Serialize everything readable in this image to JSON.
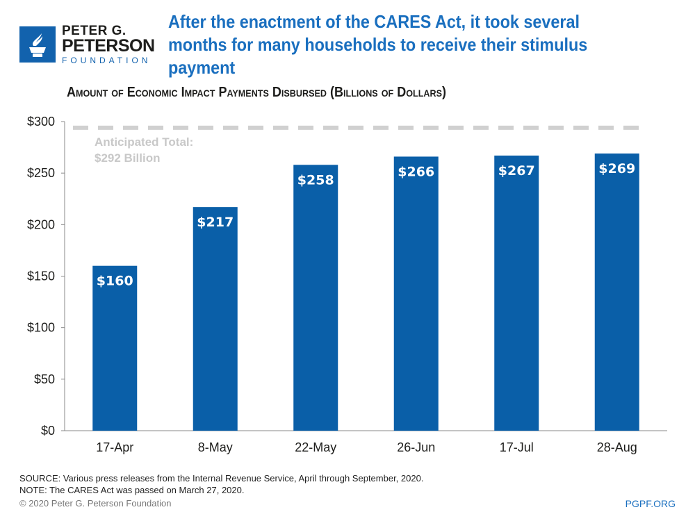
{
  "logo": {
    "line1": "PETER G.",
    "line2": "PETERSON",
    "line3": "FOUNDATION"
  },
  "title": "After the enactment of the CARES Act, it took several months for many households to receive their stimulus payment",
  "colors": {
    "bar": "#0a5fa8",
    "title": "#1a6fbf",
    "reference_line": "#d0d0d0"
  },
  "chart_data": {
    "type": "bar",
    "title": "Amount of Economic Impact Payments Disbursed (Billions of Dollars)",
    "categories": [
      "17-Apr",
      "8-May",
      "22-May",
      "26-Jun",
      "17-Jul",
      "28-Aug"
    ],
    "values": [
      160,
      217,
      258,
      266,
      267,
      269
    ],
    "data_labels": [
      "$160",
      "$217",
      "$258",
      "$266",
      "$267",
      "$269"
    ],
    "ylim": [
      0,
      300
    ],
    "yticks": [
      0,
      50,
      100,
      150,
      200,
      250,
      300
    ],
    "ytick_labels": [
      "$0",
      "$50",
      "$100",
      "$150",
      "$200",
      "$250",
      "$300"
    ],
    "grid": false,
    "reference_line": {
      "value": 292,
      "label_line1": "Anticipated Total:",
      "label_line2": "$292 Billion",
      "style": "dashed"
    }
  },
  "footer": {
    "source": "SOURCE: Various press releases from the Internal Revenue Service, April through September, 2020.",
    "note": "NOTE: The CARES Act was passed on March 27, 2020.",
    "copyright": "© 2020 Peter G. Peterson Foundation",
    "url": "PGPF.ORG"
  }
}
